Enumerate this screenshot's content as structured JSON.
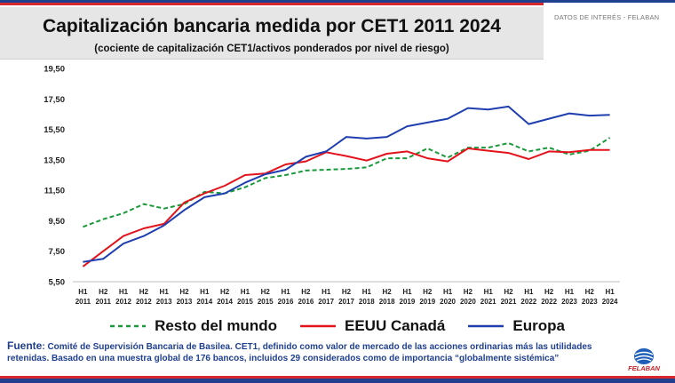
{
  "header": {
    "tag": "DATOS DE INTERÉS - FELABAN"
  },
  "chart_data": {
    "type": "line",
    "title": "Capitalización bancaria medida por CET1 2011 2024",
    "subtitle": "(cociente de capitalización CET1/activos ponderados por nivel de riesgo)",
    "x_top": [
      "H1",
      "H2",
      "H1",
      "H2",
      "H1",
      "H2",
      "H1",
      "H2",
      "H1",
      "H2",
      "H1",
      "H2",
      "H1",
      "H2",
      "H1",
      "H2",
      "H1",
      "H2",
      "H1",
      "H2",
      "H1",
      "H2",
      "H1",
      "H2",
      "H1",
      "H2",
      "H1"
    ],
    "x_bottom": [
      "2011",
      "2011",
      "2012",
      "2012",
      "2013",
      "2013",
      "2014",
      "2014",
      "2015",
      "2015",
      "2016",
      "2016",
      "2017",
      "2017",
      "2018",
      "2018",
      "2019",
      "2019",
      "2020",
      "2020",
      "2021",
      "2021",
      "2022",
      "2022",
      "2023",
      "2023",
      "2024"
    ],
    "y_ticks": [
      "5,50",
      "7,50",
      "9,50",
      "11,50",
      "13,50",
      "15,50",
      "17,50",
      "19,50"
    ],
    "ylim": [
      5.5,
      19.5
    ],
    "grid": false,
    "legend_position": "bottom",
    "series": [
      {
        "name": "Resto del mundo",
        "color": "#1a9a3a",
        "dash": true,
        "values": [
          9.1,
          9.6,
          10.0,
          10.6,
          10.3,
          10.6,
          11.4,
          11.3,
          11.7,
          12.3,
          12.5,
          12.8,
          12.85,
          12.9,
          13.0,
          13.6,
          13.6,
          14.25,
          13.65,
          14.3,
          14.3,
          14.6,
          14.05,
          14.3,
          13.85,
          14.1,
          14.95
        ]
      },
      {
        "name": "EEUU Canadá",
        "color": "#e3121b",
        "dash": false,
        "values": [
          6.5,
          7.5,
          8.5,
          9.0,
          9.3,
          10.7,
          11.3,
          11.8,
          12.5,
          12.6,
          13.2,
          13.4,
          14.0,
          13.75,
          13.45,
          13.9,
          14.05,
          13.6,
          13.4,
          14.25,
          14.1,
          13.95,
          13.55,
          14.05,
          14.0,
          14.15,
          14.15
        ]
      },
      {
        "name": "Europa",
        "color": "#1f3fb0",
        "dash": false,
        "values": [
          6.8,
          7.0,
          8.0,
          8.5,
          9.2,
          10.2,
          11.05,
          11.3,
          12.0,
          12.55,
          12.85,
          13.7,
          14.05,
          15.0,
          14.9,
          15.0,
          15.7,
          15.95,
          16.2,
          16.9,
          16.8,
          17.0,
          15.85,
          16.2,
          16.55,
          16.4,
          16.45
        ]
      }
    ]
  },
  "source": {
    "key": "Fuente",
    "text": ": Comité de Supervisión Bancaria de Basilea. CET1, definido como valor de mercado de las acciones ordinarias más las utilidades retenidas. Basado en una muestra global de 176 bancos, incluidos 29 considerados como de importancia “globalmente sistémica”"
  },
  "logo": {
    "text": "FELABAN",
    "icon": "globe-icon"
  }
}
